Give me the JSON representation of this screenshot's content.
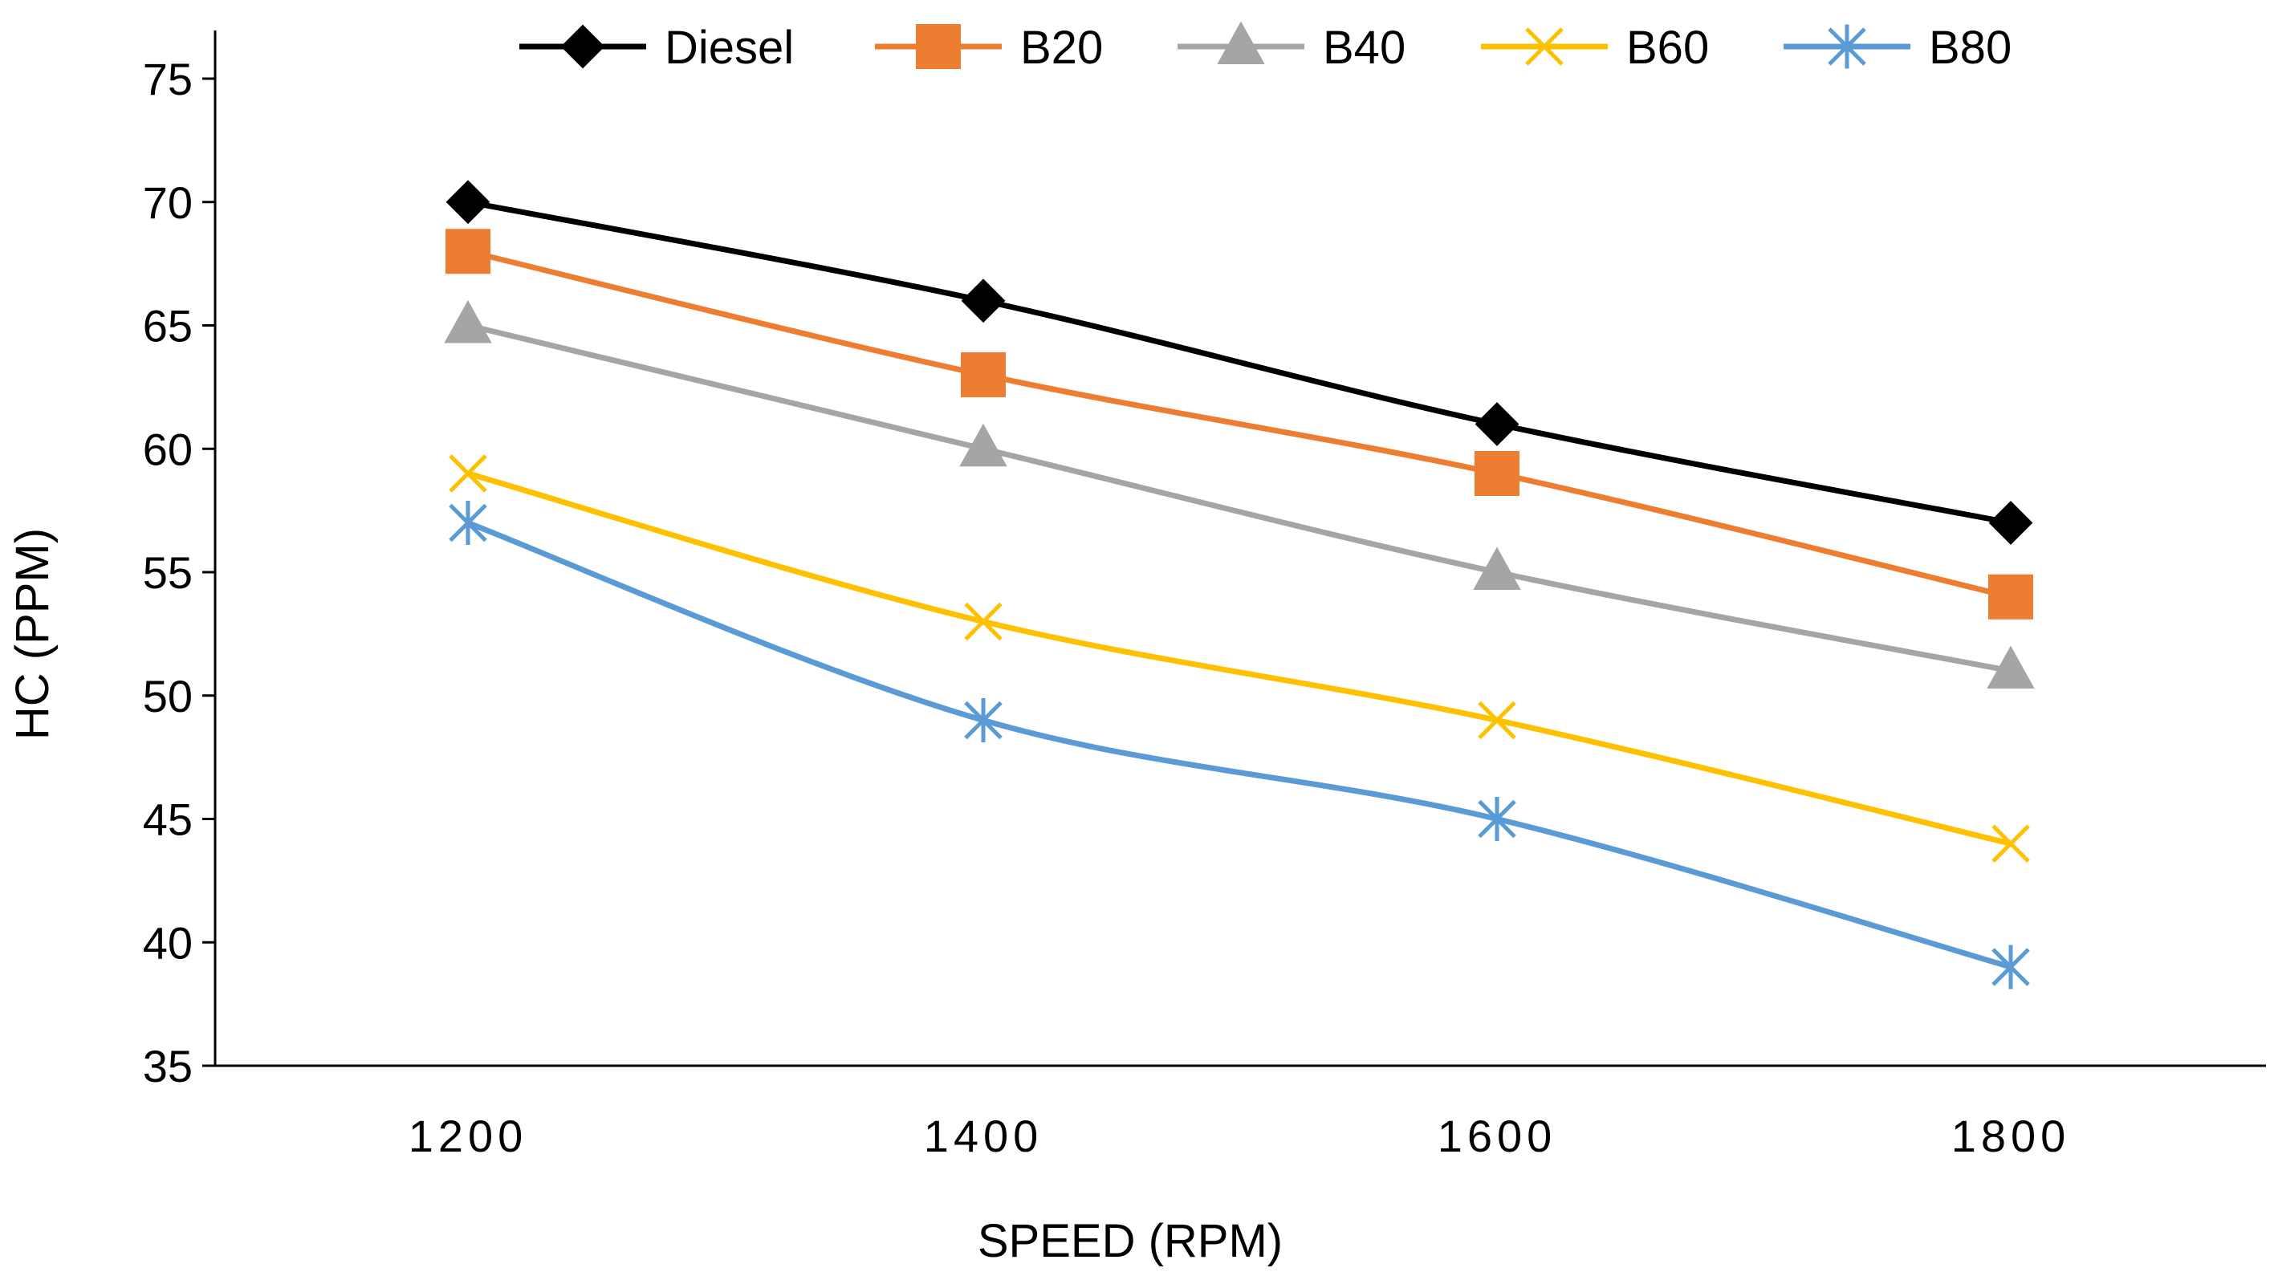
{
  "chart_data": {
    "type": "line",
    "title": "",
    "xlabel": "SPEED (RPM)",
    "ylabel": "HC (PPM)",
    "categories": [
      "1200",
      "1400",
      "1600",
      "1800"
    ],
    "ylim": [
      35,
      75
    ],
    "yticks": [
      35,
      40,
      45,
      50,
      55,
      60,
      65,
      70,
      75
    ],
    "grid": false,
    "legend_position": "top",
    "smooth": true,
    "series": [
      {
        "name": "Diesel",
        "values": [
          70,
          66,
          61,
          57
        ],
        "color": "#000000",
        "marker": "diamond"
      },
      {
        "name": "B20",
        "values": [
          68,
          63,
          59,
          54
        ],
        "color": "#ED7D31",
        "marker": "square"
      },
      {
        "name": "B40",
        "values": [
          65,
          60,
          55,
          51
        ],
        "color": "#A5A5A5",
        "marker": "triangle"
      },
      {
        "name": "B60",
        "values": [
          59,
          53,
          49,
          44
        ],
        "color": "#FFC000",
        "marker": "x"
      },
      {
        "name": "B80",
        "values": [
          57,
          49,
          45,
          39
        ],
        "color": "#5B9BD5",
        "marker": "asterisk"
      }
    ]
  }
}
